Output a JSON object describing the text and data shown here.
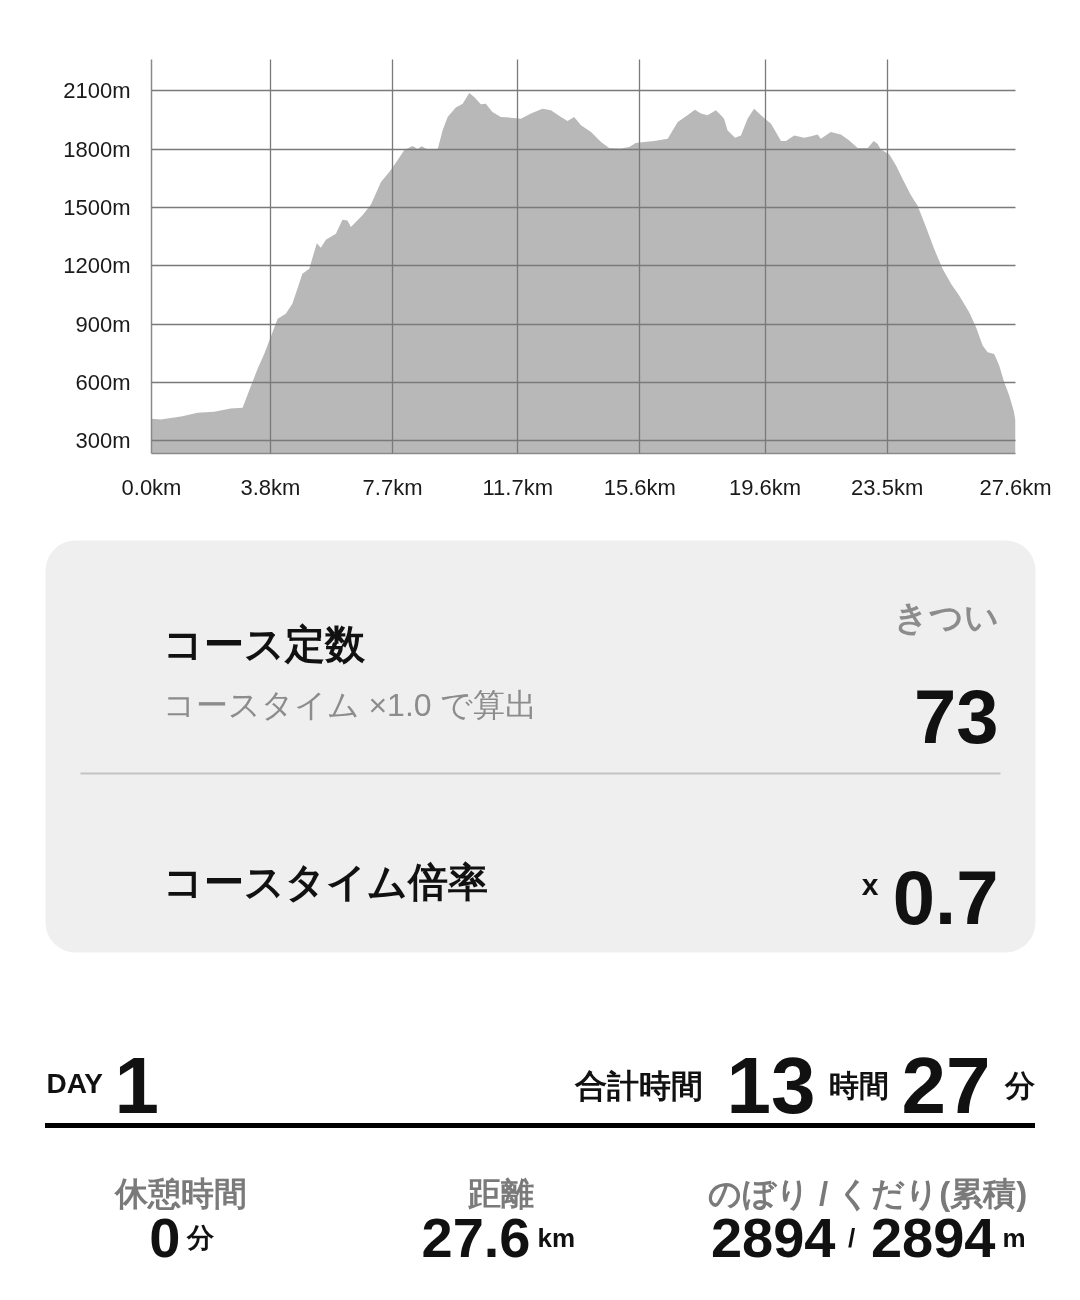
{
  "chart_data": [
    {
      "type": "area",
      "x": [
        0,
        0.3,
        0.99,
        1.47,
        2.0,
        2.53,
        2.91,
        3.12,
        3.39,
        3.6,
        4.03,
        4.29,
        4.5,
        4.82,
        5.04,
        5.28,
        5.41,
        5.57,
        5.89,
        6.1,
        6.26,
        6.37,
        6.74,
        7.01,
        7.33,
        7.59,
        7.86,
        8.07,
        8.34,
        8.5,
        8.63,
        8.82,
        9.03,
        9.14,
        9.3,
        9.46,
        9.72,
        9.94,
        10.15,
        10.31,
        10.52,
        10.68,
        10.89,
        11.16,
        11.48,
        11.8,
        12.12,
        12.49,
        12.76,
        13.08,
        13.29,
        13.5,
        13.72,
        14.04,
        14.36,
        14.62,
        14.99,
        15.26,
        15.47,
        15.74,
        16.06,
        16.49,
        16.81,
        17.12,
        17.36,
        17.55,
        17.76,
        18.03,
        18.19,
        18.29,
        18.4,
        18.64,
        18.83,
        19.04,
        19.25,
        19.47,
        19.79,
        20.11,
        20.27,
        20.53,
        20.85,
        21.07,
        21.28,
        21.38,
        21.7,
        22.02,
        22.29,
        22.56,
        22.88,
        23.07,
        23.19,
        23.3,
        23.57,
        23.78,
        23.99,
        24.26,
        24.47,
        24.74,
        25.0,
        25.27,
        25.54,
        25.8,
        26.12,
        26.34,
        26.55,
        26.71,
        26.92,
        27.08,
        27.24,
        27.4,
        27.54,
        27.6
      ],
      "values": [
        413,
        410,
        427,
        444,
        449,
        466,
        470,
        559,
        670,
        747,
        927,
        953,
        1005,
        1159,
        1185,
        1316,
        1293,
        1334,
        1365,
        1437,
        1433,
        1399,
        1459,
        1515,
        1630,
        1681,
        1742,
        1793,
        1815,
        1800,
        1814,
        1797,
        1798,
        1798,
        1896,
        1964,
        2013,
        2033,
        2088,
        2067,
        2030,
        2033,
        1990,
        1964,
        1961,
        1956,
        1982,
        2007,
        1999,
        1964,
        1944,
        1964,
        1922,
        1887,
        1836,
        1805,
        1802,
        1810,
        1831,
        1836,
        1841,
        1853,
        1939,
        1973,
        2002,
        1982,
        1973,
        1999,
        1973,
        1956,
        1896,
        1858,
        1870,
        1956,
        2007,
        1973,
        1930,
        1841,
        1841,
        1870,
        1858,
        1865,
        1874,
        1853,
        1887,
        1875,
        1844,
        1805,
        1805,
        1841,
        1827,
        1797,
        1772,
        1716,
        1647,
        1562,
        1510,
        1399,
        1287,
        1185,
        1107,
        1047,
        961,
        884,
        790,
        756,
        747,
        687,
        601,
        533,
        456,
        404
      ],
      "color": "#b8b8b8",
      "xlim": [
        0,
        27.6
      ],
      "ylim": [
        235,
        2260
      ],
      "xticks": [
        {
          "value": 0,
          "label": "0.0km"
        },
        {
          "value": 3.8,
          "label": "3.8km"
        },
        {
          "value": 7.7,
          "label": "7.7km"
        },
        {
          "value": 11.7,
          "label": "11.7km"
        },
        {
          "value": 15.6,
          "label": "15.6km"
        },
        {
          "value": 19.6,
          "label": "19.6km"
        },
        {
          "value": 23.5,
          "label": "23.5km"
        },
        {
          "value": 27.6,
          "label": "27.6km"
        }
      ],
      "yticks": [
        {
          "value": 300,
          "label": "300m"
        },
        {
          "value": 600,
          "label": "600m"
        },
        {
          "value": 900,
          "label": "900m"
        },
        {
          "value": 1200,
          "label": "1200m"
        },
        {
          "value": 1500,
          "label": "1500m"
        },
        {
          "value": 1800,
          "label": "1800m"
        },
        {
          "value": 2100,
          "label": "2100m"
        }
      ],
      "grid": true
    },
    {
      "type": "other",
      "annotations": [
        "コース定数",
        "コースタイム ×1.0 で算出",
        "きつい",
        "73",
        "コースタイム倍率",
        "x",
        "0.7",
        "DAY",
        "1",
        "合計時間",
        "13",
        "時間",
        "27",
        "分",
        "休憩時間",
        "0",
        "分",
        "距離",
        "27.6",
        "km",
        "のぼり / くだり(累積)",
        "2894",
        "/",
        "2894",
        "m"
      ]
    }
  ]
}
